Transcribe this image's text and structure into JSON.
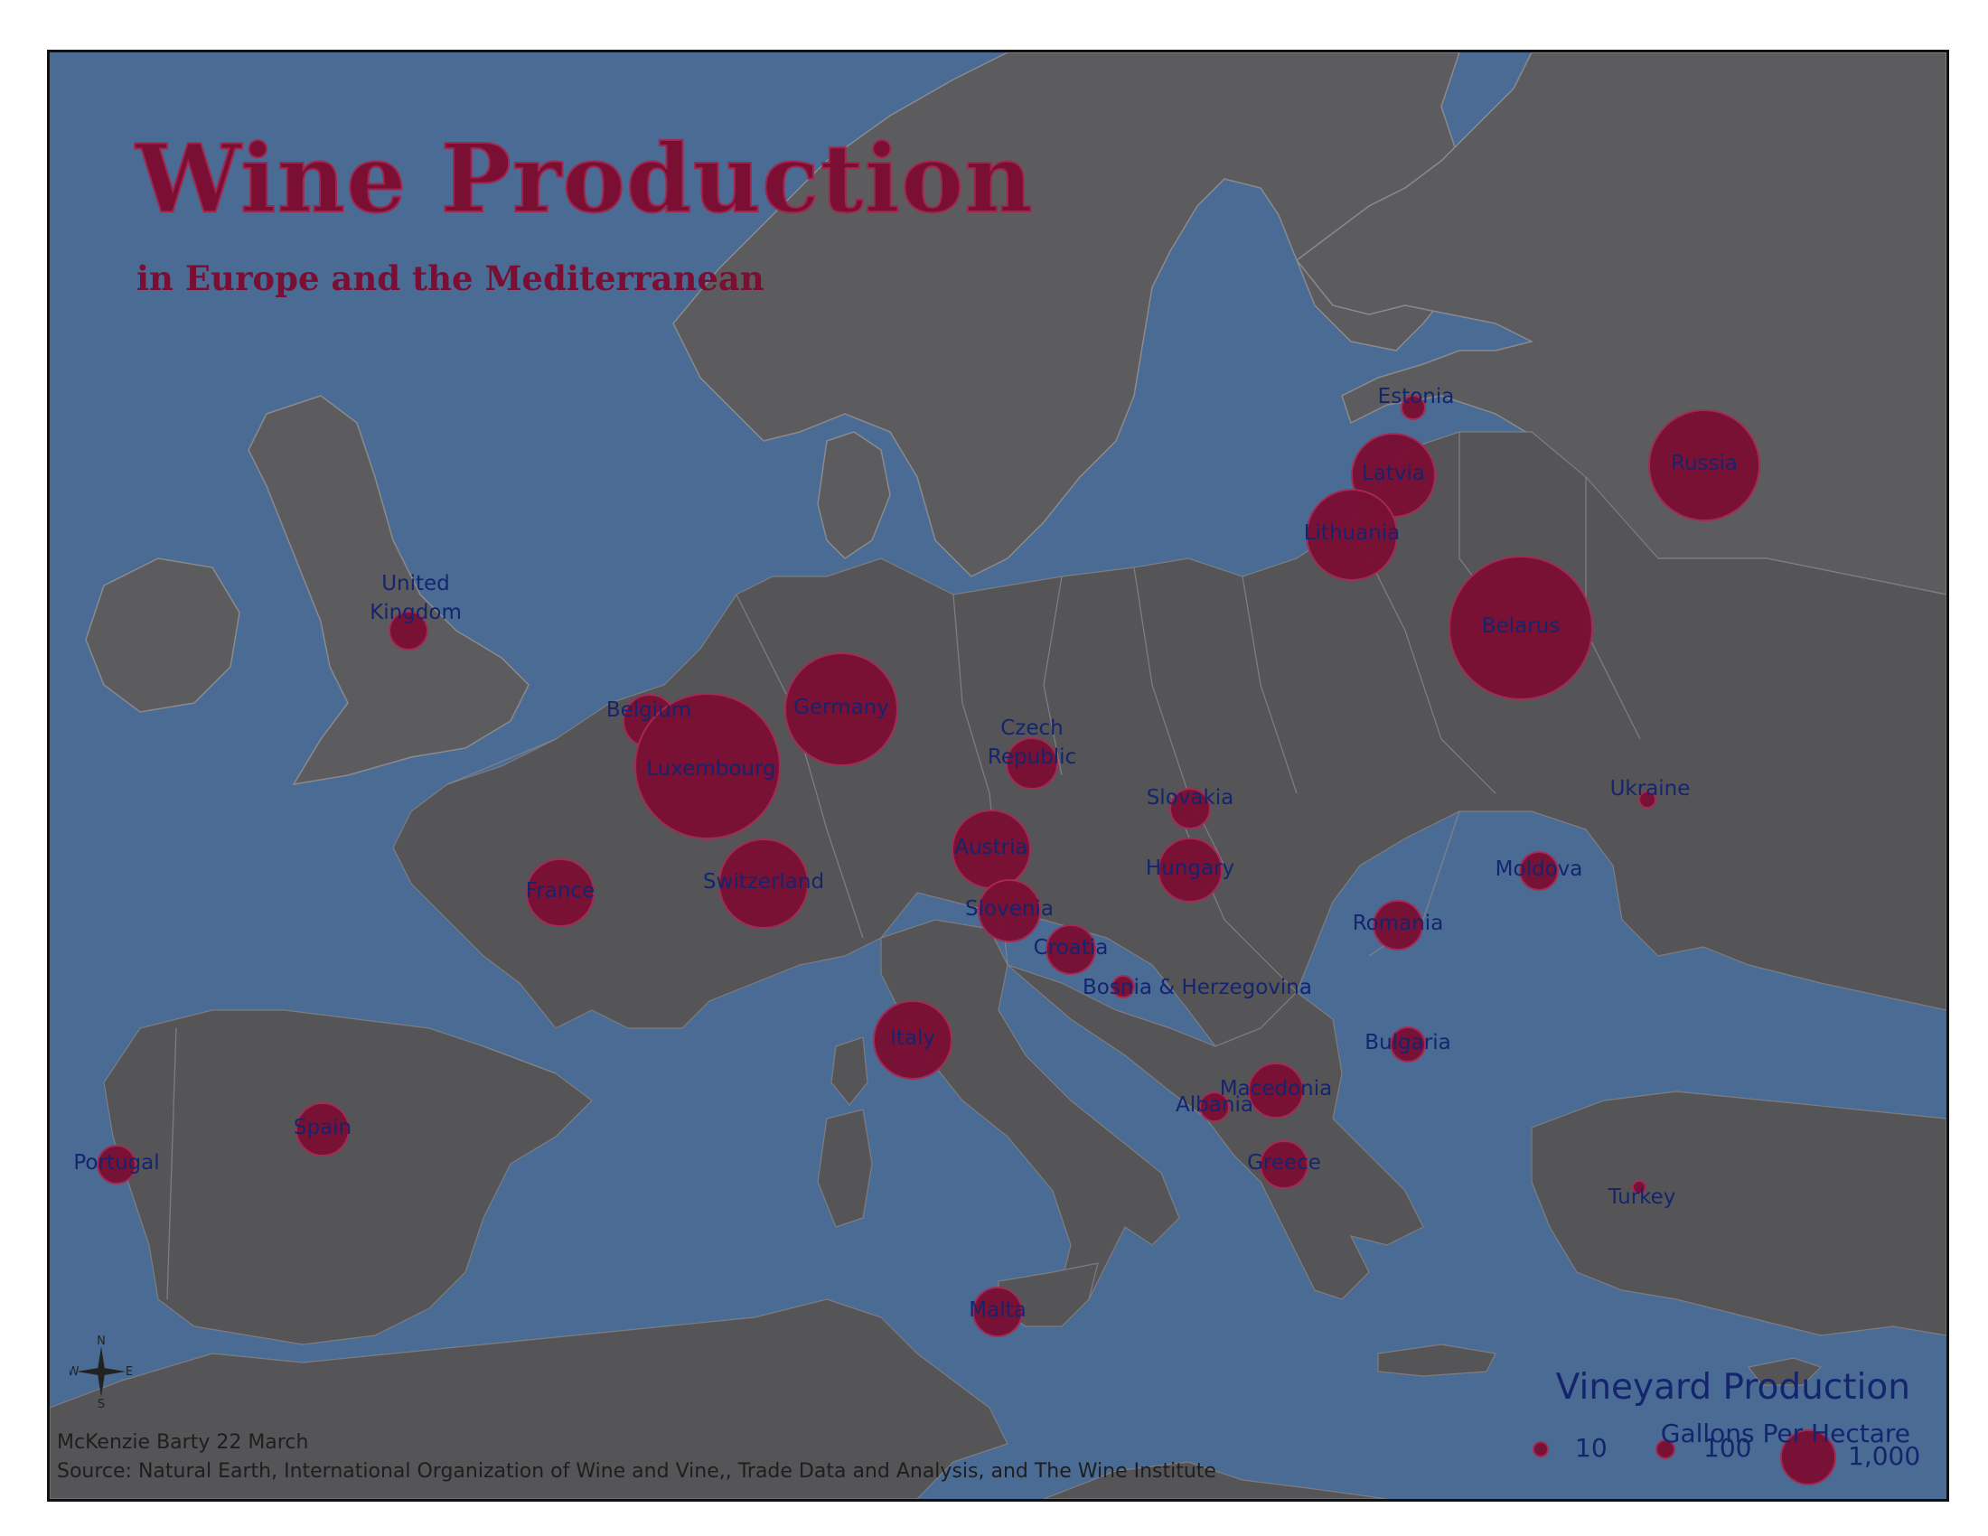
{
  "map": {
    "title": "Wine Production",
    "subtitle": "in Europe and the Mediterranean",
    "colors": {
      "sea": "#4a6b93",
      "land": "#5c5c5f",
      "bubble": "#7a0f33",
      "label": "#14256e"
    }
  },
  "legend": {
    "title": "Vineyard Production",
    "subtitle": "Gallons Per Hectare",
    "items": [
      {
        "label": "10",
        "value": 10
      },
      {
        "label": "100",
        "value": 100
      },
      {
        "label": "1,000",
        "value": 1000
      }
    ]
  },
  "countries": [
    {
      "name": "United Kingdom",
      "lines": [
        "United",
        "Kingdom"
      ]
    },
    {
      "name": "Belgium",
      "lines": [
        "Belgium"
      ]
    },
    {
      "name": "Luxembourg",
      "lines": [
        "Luxembourg"
      ]
    },
    {
      "name": "Germany",
      "lines": [
        "Germany"
      ]
    },
    {
      "name": "France",
      "lines": [
        "France"
      ]
    },
    {
      "name": "Switzerland",
      "lines": [
        "Switzerland"
      ]
    },
    {
      "name": "Czech Republic",
      "lines": [
        "Czech",
        "Republic"
      ]
    },
    {
      "name": "Austria",
      "lines": [
        "Austria"
      ]
    },
    {
      "name": "Slovenia",
      "lines": [
        "Slovenia"
      ]
    },
    {
      "name": "Croatia",
      "lines": [
        "Croatia"
      ]
    },
    {
      "name": "Bosnia & Herzegovina",
      "lines": [
        "Bosnia & Herzegovina"
      ]
    },
    {
      "name": "Slovakia",
      "lines": [
        "Slovakia"
      ]
    },
    {
      "name": "Hungary",
      "lines": [
        "Hungary"
      ]
    },
    {
      "name": "Italy",
      "lines": [
        "Italy"
      ]
    },
    {
      "name": "Spain",
      "lines": [
        "Spain"
      ]
    },
    {
      "name": "Portugal",
      "lines": [
        "Portugal"
      ]
    },
    {
      "name": "Malta",
      "lines": [
        "Malta"
      ]
    },
    {
      "name": "Estonia",
      "lines": [
        "Estonia"
      ]
    },
    {
      "name": "Latvia",
      "lines": [
        "Latvia"
      ]
    },
    {
      "name": "Lithuania",
      "lines": [
        "Lithuania"
      ]
    },
    {
      "name": "Belarus",
      "lines": [
        "Belarus"
      ]
    },
    {
      "name": "Russia",
      "lines": [
        "Russia"
      ]
    },
    {
      "name": "Ukraine",
      "lines": [
        "Ukraine"
      ]
    },
    {
      "name": "Moldova",
      "lines": [
        "Moldova"
      ]
    },
    {
      "name": "Romania",
      "lines": [
        "Romania"
      ]
    },
    {
      "name": "Bulgaria",
      "lines": [
        "Bulgaria"
      ]
    },
    {
      "name": "Macedonia",
      "lines": [
        "Macedonia"
      ]
    },
    {
      "name": "Albania",
      "lines": [
        "Albania"
      ]
    },
    {
      "name": "Greece",
      "lines": [
        "Greece"
      ]
    },
    {
      "name": "Turkey",
      "lines": [
        "Turkey"
      ]
    }
  ],
  "compass": {
    "n": "N",
    "s": "S",
    "e": "E",
    "w": "W"
  },
  "credit": "McKenzie Barty 22 March",
  "source": "Source: Natural Earth, International Organization of Wine and Vine,, Trade Data and Analysis, and The Wine Institute"
}
